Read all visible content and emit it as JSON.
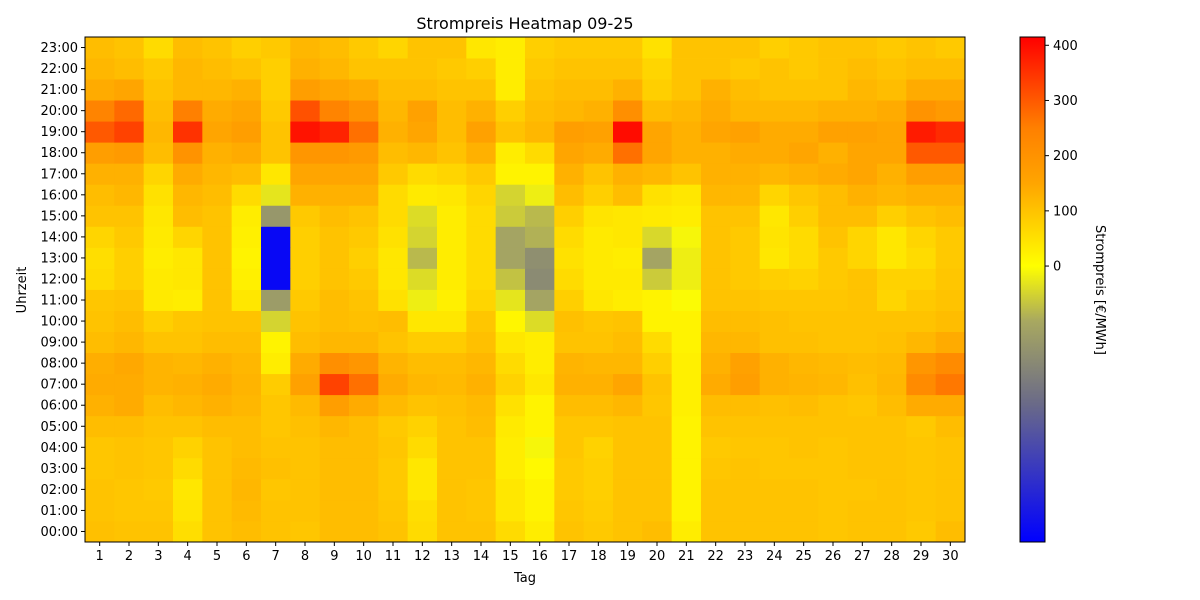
{
  "chart_data": {
    "type": "heatmap",
    "title": "Strompreis Heatmap 09-25",
    "xlabel": "Tag",
    "ylabel": "Uhrzeit",
    "x": [
      "1",
      "2",
      "3",
      "4",
      "5",
      "6",
      "7",
      "8",
      "9",
      "10",
      "11",
      "12",
      "13",
      "14",
      "15",
      "16",
      "17",
      "18",
      "19",
      "20",
      "21",
      "22",
      "23",
      "24",
      "25",
      "26",
      "27",
      "28",
      "29",
      "30"
    ],
    "y": [
      "00:00",
      "01:00",
      "02:00",
      "03:00",
      "04:00",
      "05:00",
      "06:00",
      "07:00",
      "08:00",
      "09:00",
      "10:00",
      "11:00",
      "12:00",
      "13:00",
      "14:00",
      "15:00",
      "16:00",
      "17:00",
      "18:00",
      "19:00",
      "20:00",
      "21:00",
      "22:00",
      "23:00"
    ],
    "values": [
      [
        105,
        100,
        100,
        55,
        100,
        110,
        100,
        95,
        110,
        110,
        100,
        60,
        100,
        100,
        60,
        30,
        100,
        90,
        100,
        110,
        30,
        100,
        100,
        100,
        100,
        95,
        100,
        100,
        90,
        110
      ],
      [
        100,
        95,
        95,
        45,
        100,
        115,
        100,
        100,
        110,
        110,
        95,
        55,
        100,
        95,
        40,
        20,
        95,
        85,
        100,
        100,
        20,
        100,
        100,
        100,
        100,
        95,
        100,
        100,
        95,
        100
      ],
      [
        100,
        95,
        90,
        40,
        100,
        120,
        95,
        100,
        110,
        110,
        90,
        40,
        100,
        95,
        40,
        20,
        90,
        80,
        100,
        100,
        20,
        100,
        100,
        100,
        100,
        95,
        95,
        100,
        95,
        100
      ],
      [
        95,
        100,
        95,
        60,
        100,
        115,
        105,
        100,
        110,
        110,
        90,
        40,
        100,
        100,
        30,
        10,
        90,
        80,
        100,
        100,
        20,
        95,
        100,
        95,
        95,
        95,
        100,
        100,
        95,
        100
      ],
      [
        95,
        100,
        95,
        75,
        100,
        110,
        100,
        100,
        110,
        110,
        95,
        60,
        100,
        100,
        30,
        -10,
        95,
        75,
        100,
        100,
        20,
        90,
        95,
        95,
        100,
        95,
        100,
        100,
        95,
        100
      ],
      [
        110,
        110,
        100,
        100,
        110,
        110,
        95,
        105,
        120,
        110,
        90,
        75,
        100,
        110,
        35,
        20,
        95,
        95,
        100,
        100,
        20,
        100,
        100,
        100,
        100,
        100,
        100,
        100,
        90,
        110
      ],
      [
        130,
        140,
        110,
        120,
        130,
        120,
        95,
        115,
        170,
        140,
        115,
        100,
        105,
        115,
        50,
        20,
        110,
        110,
        120,
        95,
        25,
        110,
        110,
        105,
        110,
        100,
        95,
        110,
        140,
        140
      ],
      [
        140,
        140,
        125,
        130,
        140,
        125,
        85,
        160,
        330,
        270,
        140,
        120,
        115,
        130,
        75,
        40,
        130,
        130,
        150,
        100,
        25,
        140,
        170,
        130,
        125,
        120,
        105,
        120,
        220,
        260
      ],
      [
        135,
        145,
        125,
        120,
        130,
        120,
        30,
        140,
        210,
        190,
        125,
        110,
        110,
        120,
        60,
        30,
        125,
        120,
        120,
        80,
        25,
        130,
        160,
        130,
        120,
        115,
        110,
        115,
        190,
        220
      ],
      [
        110,
        120,
        100,
        100,
        110,
        110,
        20,
        110,
        120,
        120,
        100,
        85,
        85,
        105,
        40,
        30,
        100,
        100,
        110,
        60,
        20,
        120,
        120,
        105,
        105,
        100,
        100,
        105,
        120,
        140
      ],
      [
        100,
        110,
        80,
        95,
        100,
        100,
        -50,
        100,
        110,
        105,
        110,
        40,
        40,
        95,
        15,
        -40,
        105,
        95,
        100,
        20,
        20,
        110,
        110,
        105,
        100,
        100,
        100,
        100,
        100,
        110
      ],
      [
        95,
        100,
        35,
        30,
        100,
        40,
        -130,
        90,
        110,
        100,
        50,
        -20,
        25,
        70,
        -30,
        -110,
        80,
        40,
        30,
        20,
        -5,
        100,
        100,
        95,
        95,
        95,
        100,
        70,
        90,
        100
      ],
      [
        60,
        80,
        35,
        40,
        100,
        25,
        -480,
        80,
        100,
        90,
        40,
        -40,
        30,
        60,
        -70,
        -170,
        60,
        35,
        35,
        -60,
        -20,
        100,
        90,
        80,
        75,
        90,
        100,
        75,
        75,
        95
      ],
      [
        55,
        80,
        30,
        40,
        100,
        20,
        -480,
        80,
        100,
        80,
        40,
        -80,
        30,
        60,
        -110,
        -160,
        50,
        35,
        30,
        -110,
        -20,
        100,
        90,
        40,
        60,
        90,
        70,
        40,
        60,
        90
      ],
      [
        70,
        90,
        35,
        70,
        100,
        25,
        -480,
        80,
        100,
        90,
        50,
        -50,
        30,
        60,
        -110,
        -90,
        60,
        35,
        40,
        -45,
        -10,
        100,
        90,
        45,
        60,
        100,
        70,
        40,
        70,
        90
      ],
      [
        100,
        100,
        40,
        110,
        100,
        30,
        -140,
        90,
        110,
        100,
        60,
        -40,
        30,
        60,
        -60,
        -80,
        80,
        45,
        40,
        35,
        30,
        100,
        100,
        40,
        80,
        110,
        110,
        80,
        100,
        110
      ],
      [
        110,
        120,
        50,
        120,
        110,
        60,
        -30,
        130,
        130,
        130,
        60,
        35,
        40,
        70,
        -50,
        -20,
        110,
        80,
        110,
        50,
        40,
        120,
        120,
        70,
        95,
        110,
        130,
        120,
        130,
        130
      ],
      [
        130,
        130,
        70,
        140,
        120,
        110,
        40,
        150,
        150,
        150,
        90,
        60,
        70,
        90,
        20,
        20,
        130,
        100,
        130,
        120,
        100,
        130,
        130,
        120,
        130,
        140,
        150,
        130,
        170,
        170
      ],
      [
        170,
        180,
        110,
        200,
        130,
        140,
        100,
        190,
        190,
        180,
        110,
        120,
        100,
        130,
        30,
        60,
        150,
        140,
        270,
        150,
        130,
        130,
        140,
        140,
        150,
        130,
        150,
        150,
        300,
        300
      ],
      [
        300,
        330,
        120,
        350,
        150,
        170,
        100,
        390,
        370,
        270,
        130,
        150,
        110,
        160,
        100,
        120,
        170,
        160,
        400,
        150,
        130,
        150,
        160,
        140,
        140,
        160,
        160,
        150,
        380,
        360
      ],
      [
        240,
        280,
        110,
        250,
        140,
        150,
        90,
        310,
        240,
        200,
        120,
        160,
        110,
        130,
        80,
        110,
        120,
        130,
        210,
        110,
        120,
        140,
        120,
        120,
        120,
        130,
        130,
        140,
        200,
        180
      ],
      [
        140,
        150,
        100,
        120,
        120,
        130,
        80,
        170,
        150,
        140,
        110,
        110,
        100,
        100,
        30,
        100,
        110,
        110,
        130,
        80,
        100,
        130,
        110,
        100,
        100,
        100,
        120,
        110,
        140,
        140
      ],
      [
        120,
        110,
        90,
        120,
        110,
        100,
        80,
        130,
        120,
        100,
        100,
        100,
        90,
        80,
        30,
        90,
        100,
        100,
        100,
        70,
        100,
        100,
        90,
        100,
        90,
        100,
        110,
        100,
        110,
        110
      ],
      [
        110,
        100,
        60,
        110,
        100,
        80,
        90,
        120,
        110,
        90,
        70,
        100,
        100,
        40,
        30,
        80,
        90,
        90,
        90,
        50,
        100,
        100,
        100,
        80,
        90,
        100,
        100,
        90,
        100,
        90
      ]
    ],
    "colorbar": {
      "label": "Strompreis [€/MWh]",
      "range": [
        -500,
        415
      ],
      "ticks": [
        0,
        100,
        200,
        300,
        400
      ],
      "stops": [
        {
          "value": -500,
          "color": "#0000ff"
        },
        {
          "value": -250,
          "color": "#6a6a88"
        },
        {
          "value": -100,
          "color": "#a8a860"
        },
        {
          "value": 0,
          "color": "#ffff00"
        },
        {
          "value": 150,
          "color": "#ffa500"
        },
        {
          "value": 250,
          "color": "#ff8000"
        },
        {
          "value": 415,
          "color": "#ff0000"
        }
      ]
    }
  }
}
